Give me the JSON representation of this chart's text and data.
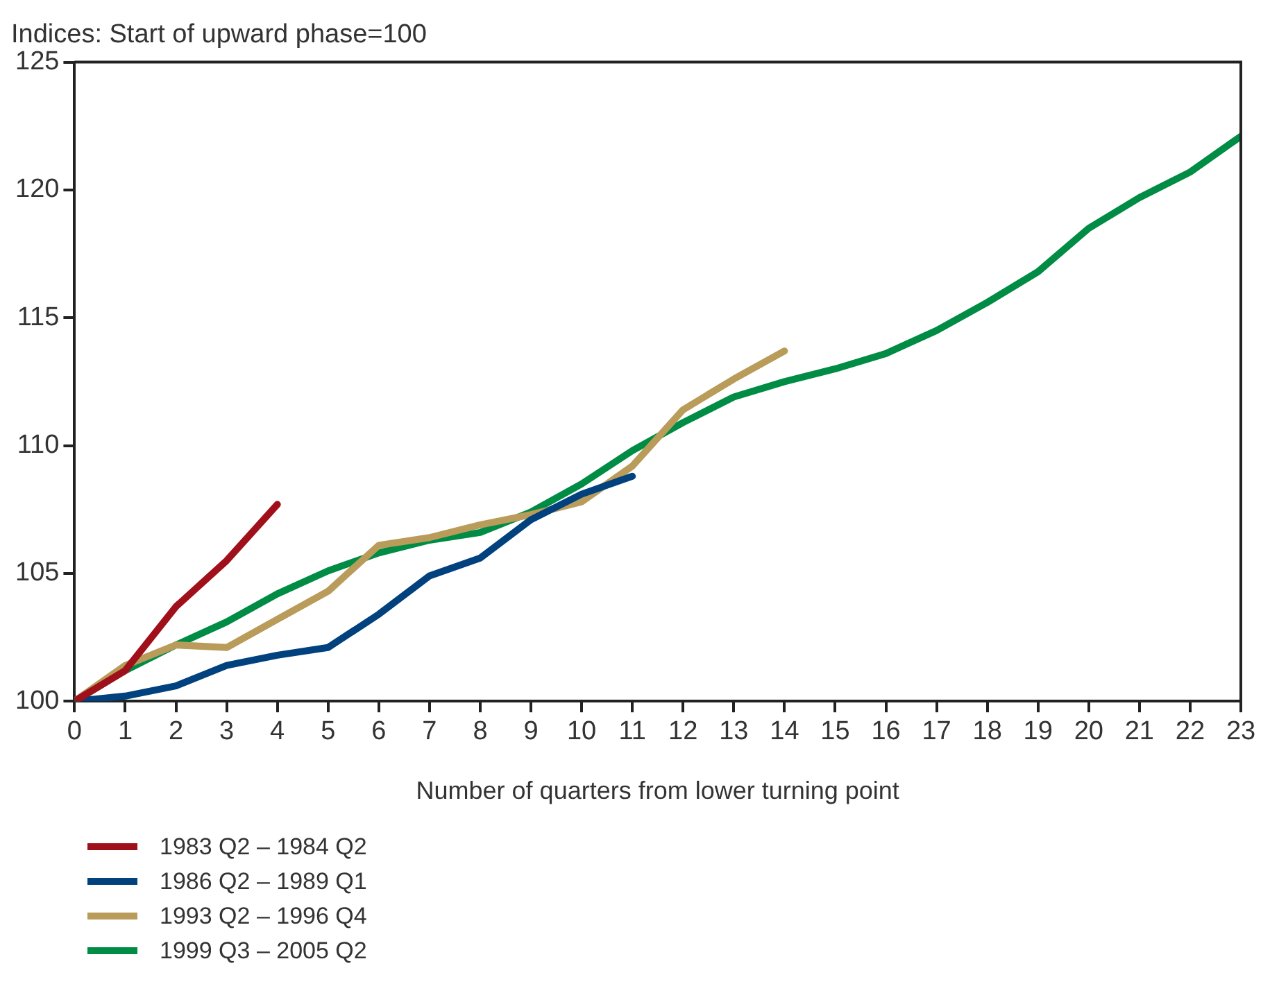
{
  "chart_data": {
    "type": "line",
    "title": "Indices: Start of upward phase=100",
    "xlabel": "Number of quarters from lower turning point",
    "x": [
      0,
      1,
      2,
      3,
      4,
      5,
      6,
      7,
      8,
      9,
      10,
      11,
      12,
      13,
      14,
      15,
      16,
      17,
      18,
      19,
      20,
      21,
      22,
      23
    ],
    "xlim": [
      0,
      23
    ],
    "xticks": [
      0,
      1,
      2,
      3,
      4,
      5,
      6,
      7,
      8,
      9,
      10,
      11,
      12,
      13,
      14,
      15,
      16,
      17,
      18,
      19,
      20,
      21,
      22,
      23
    ],
    "ylim": [
      100,
      125
    ],
    "yticks": [
      100,
      105,
      110,
      115,
      120,
      125
    ],
    "grid": false,
    "legend": "bottom",
    "marker": "none",
    "line_style": "solid",
    "series": [
      {
        "name": "1983 Q2 – 1984 Q2",
        "color": "#a0101a",
        "x": [
          0,
          1,
          2,
          3,
          4
        ],
        "values": [
          100,
          101.2,
          103.7,
          105.5,
          107.7
        ]
      },
      {
        "name": "1986 Q2 – 1989 Q1",
        "color": "#00417e",
        "x": [
          0,
          1,
          2,
          3,
          4,
          5,
          6,
          7,
          8,
          9,
          10,
          11
        ],
        "values": [
          100,
          100.2,
          100.6,
          101.4,
          101.8,
          102.1,
          103.4,
          104.9,
          105.6,
          107.1,
          108.1,
          108.8
        ]
      },
      {
        "name": "1993 Q2 – 1996 Q4",
        "color": "#b99b5a",
        "x": [
          0,
          1,
          2,
          3,
          4,
          5,
          6,
          7,
          8,
          9,
          10,
          11,
          12,
          13,
          14
        ],
        "values": [
          100,
          101.4,
          102.2,
          102.1,
          103.2,
          104.3,
          106.1,
          106.4,
          106.9,
          107.3,
          107.8,
          109.2,
          111.4,
          112.6,
          113.7
        ]
      },
      {
        "name": "1999 Q3 –  2005 Q2",
        "color": "#008c45",
        "values": [
          100,
          101.2,
          102.2,
          103.1,
          104.2,
          105.1,
          105.8,
          106.3,
          106.6,
          107.4,
          108.5,
          109.8,
          110.9,
          111.9,
          112.5,
          113.0,
          113.6,
          114.5,
          115.6,
          116.8,
          118.5,
          119.7,
          120.7,
          122.1
        ]
      }
    ]
  }
}
